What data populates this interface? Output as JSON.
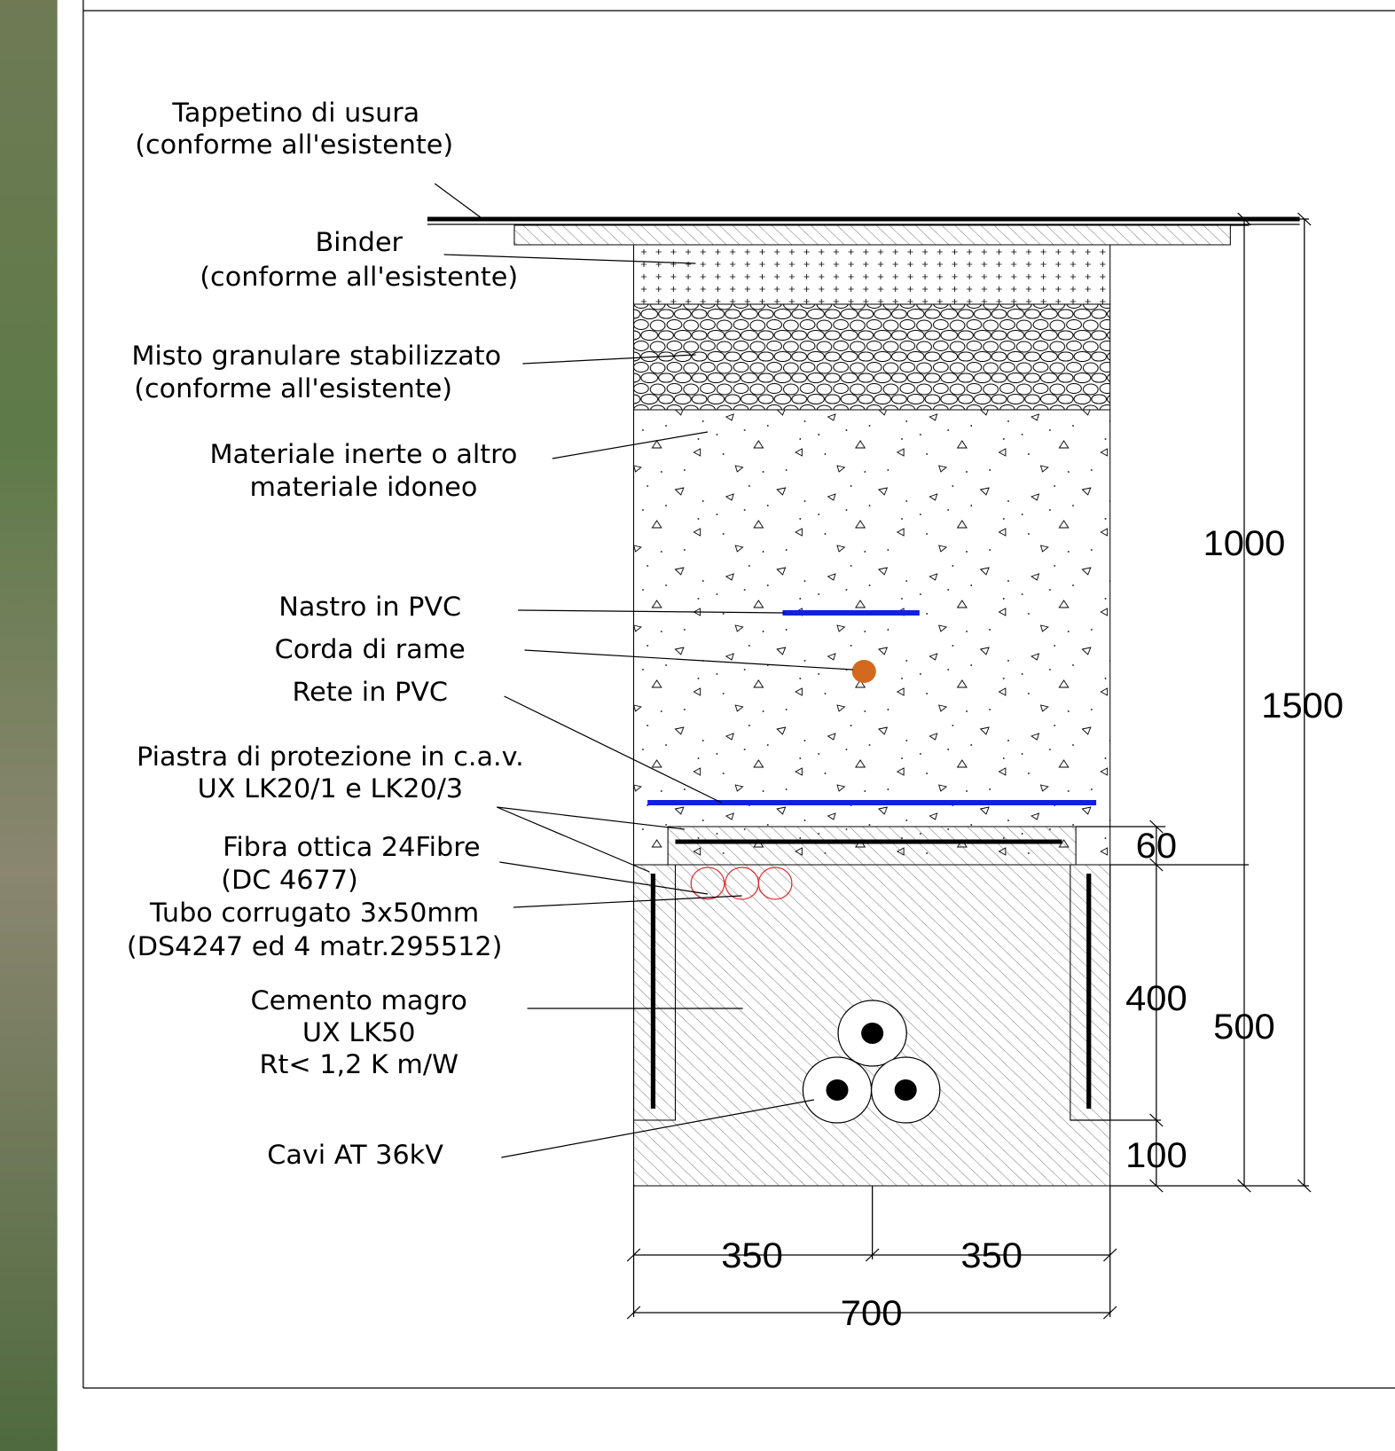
{
  "labels": [
    {
      "lines": [
        "Tappetino di usura",
        "(conforme all'esistente)"
      ]
    },
    {
      "lines": [
        "Binder",
        "(conforme all'esistente)"
      ]
    },
    {
      "lines": [
        "Misto granulare stabilizzato",
        "(conforme all'esistente)"
      ]
    },
    {
      "lines": [
        "Materiale inerte o altro",
        "materiale idoneo"
      ]
    },
    {
      "lines": [
        "Nastro in PVC"
      ]
    },
    {
      "lines": [
        "Corda di rame"
      ]
    },
    {
      "lines": [
        "Rete in PVC"
      ]
    },
    {
      "lines": [
        "Piastra di protezione in c.a.v.",
        "UX LK20/1 e LK20/3"
      ]
    },
    {
      "lines": [
        "Fibra ottica 24Fibre",
        "(DC 4677)"
      ]
    },
    {
      "lines": [
        "Tubo corrugato 3x50mm",
        "(DS4247 ed 4 matr.295512)"
      ]
    },
    {
      "lines": [
        "Cemento magro",
        "UX LK50",
        "Rt< 1,2 K m/W"
      ]
    },
    {
      "lines": [
        "Cavi AT 36kV"
      ]
    }
  ],
  "dimensions": [
    "1000",
    "1500",
    "60",
    "400",
    "500",
    "100",
    "350",
    "350",
    "700"
  ]
}
